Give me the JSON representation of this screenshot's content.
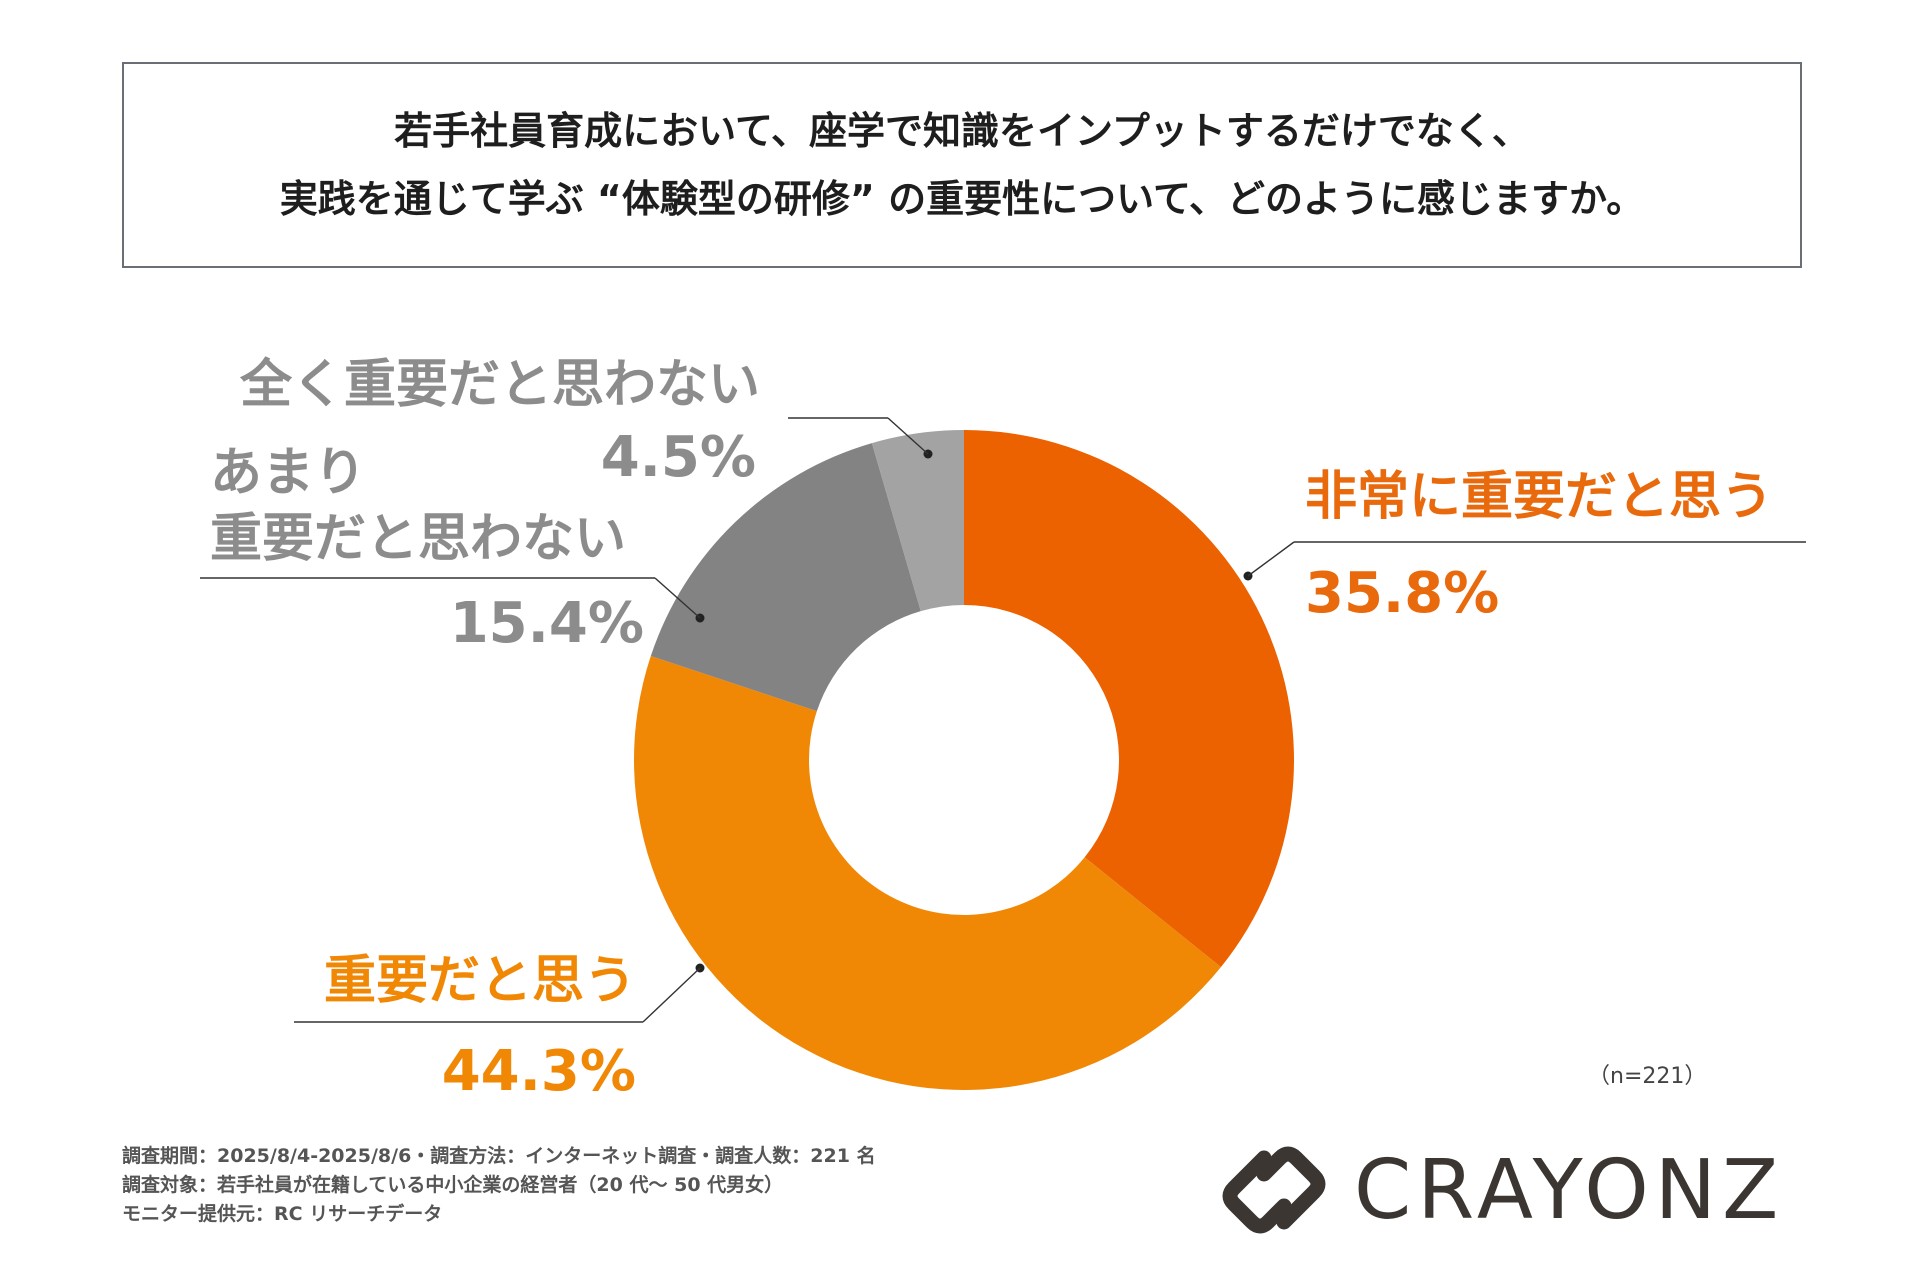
{
  "title": {
    "line1": "若手社員育成において、座学で知識をインプットするだけでなく、",
    "line2": "実践を通じて学ぶ “体験型の研修” の重要性について、どのように感じますか。"
  },
  "chart_data": {
    "type": "pie",
    "variant": "donut",
    "slices": [
      {
        "label": "非常に重要だと思う",
        "value": 35.8,
        "value_label": "35.8%",
        "color": "#ec6100",
        "text_color": "#e86a0c"
      },
      {
        "label": "重要だと思う",
        "value": 44.3,
        "value_label": "44.3%",
        "color": "#f08806",
        "text_color": "#f08806"
      },
      {
        "label": "あまり重要だと思わない",
        "label_lines": [
          "あまり",
          "重要だと思わない"
        ],
        "value": 15.4,
        "value_label": "15.4%",
        "color": "#838383",
        "text_color": "#8c8c8c"
      },
      {
        "label": "全く重要だと思わない",
        "value": 4.5,
        "value_label": "4.5%",
        "color": "#a3a3a3",
        "text_color": "#8c8c8c"
      }
    ],
    "n_label": "（n=221）"
  },
  "notes": [
    "調査期間：2025/8/4-2025/8/6・調査方法：インターネット調査・調査人数：221 名",
    "調査対象：若手社員が在籍している中小企業の経営者（20 代〜 50 代男女）",
    "モニター提供元：RC リサーチデータ"
  ],
  "brand": {
    "name": "CRAYONZ",
    "logo": "crayonz-logo-icon"
  }
}
